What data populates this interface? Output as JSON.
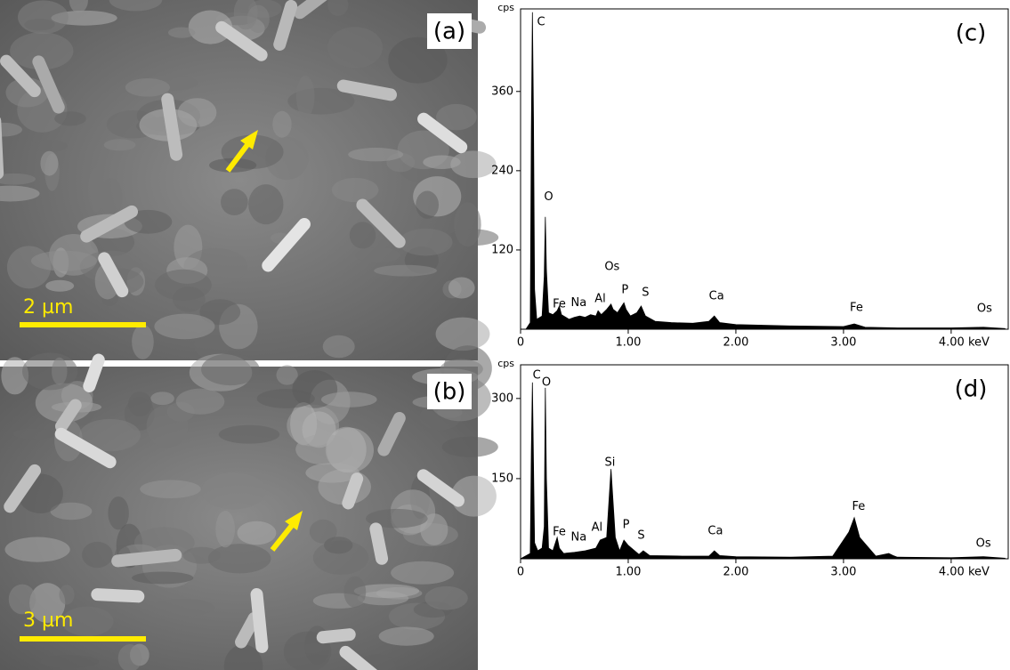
{
  "images": [
    {
      "label": "(a)",
      "scale_bar": "2 µm"
    },
    {
      "label": "(b)",
      "scale_bar": "3 µm"
    }
  ],
  "chart_data": [
    {
      "type": "area",
      "panel": "(c)",
      "y_label": "cps",
      "color": "#000000",
      "x": [
        0,
        0.05,
        0.09,
        0.1,
        0.11,
        0.12,
        0.13,
        0.15,
        0.2,
        0.22,
        0.23,
        0.24,
        0.26,
        0.3,
        0.34,
        0.36,
        0.38,
        0.45,
        0.5,
        0.55,
        0.6,
        0.65,
        0.7,
        0.72,
        0.75,
        0.8,
        0.84,
        0.86,
        0.9,
        0.94,
        0.96,
        0.98,
        1.02,
        1.08,
        1.12,
        1.16,
        1.25,
        1.4,
        1.6,
        1.75,
        1.8,
        1.85,
        2.0,
        2.5,
        3.0,
        3.1,
        3.2,
        3.5,
        4.0,
        4.3,
        4.5
      ],
      "values": [
        0,
        0,
        10,
        300,
        480,
        320,
        60,
        15,
        20,
        80,
        170,
        90,
        25,
        22,
        28,
        35,
        22,
        15,
        18,
        20,
        18,
        22,
        20,
        28,
        22,
        30,
        38,
        30,
        25,
        35,
        40,
        30,
        20,
        25,
        35,
        20,
        12,
        10,
        9,
        12,
        20,
        10,
        7,
        5,
        4,
        8,
        3,
        2,
        2,
        3,
        1
      ],
      "xlim": [
        0,
        4.53
      ],
      "ylim": [
        0,
        485
      ],
      "xticks": [
        0,
        {
          "value": 1,
          "label": "1.00"
        },
        {
          "value": 2,
          "label": "2.00"
        },
        {
          "value": 3,
          "label": "3.00"
        },
        {
          "value": 4,
          "label": "4.00 keV"
        }
      ],
      "yticks": [
        120,
        240,
        360
      ],
      "annotations": [
        {
          "text": "C",
          "x": 0.19,
          "y": 465
        },
        {
          "text": "O",
          "x": 0.26,
          "y": 200
        },
        {
          "text": "Fe",
          "x": 0.36,
          "y": 38
        },
        {
          "text": "Na",
          "x": 0.54,
          "y": 40
        },
        {
          "text": "Al",
          "x": 0.74,
          "y": 46
        },
        {
          "text": "Os",
          "x": 0.85,
          "y": 94
        },
        {
          "text": "P",
          "x": 0.97,
          "y": 59
        },
        {
          "text": "S",
          "x": 1.16,
          "y": 55
        },
        {
          "text": "Ca",
          "x": 1.82,
          "y": 50
        },
        {
          "text": "Fe",
          "x": 3.12,
          "y": 32
        },
        {
          "text": "Os",
          "x": 4.31,
          "y": 31
        }
      ]
    },
    {
      "type": "area",
      "panel": "(d)",
      "y_label": "cps",
      "color": "#000000",
      "x": [
        0,
        0.09,
        0.1,
        0.11,
        0.12,
        0.13,
        0.16,
        0.2,
        0.22,
        0.23,
        0.24,
        0.26,
        0.3,
        0.34,
        0.36,
        0.4,
        0.5,
        0.6,
        0.7,
        0.74,
        0.8,
        0.84,
        0.88,
        0.92,
        0.96,
        1.0,
        1.1,
        1.14,
        1.2,
        1.5,
        1.75,
        1.8,
        1.85,
        2.0,
        2.5,
        2.9,
        3.05,
        3.1,
        3.15,
        3.3,
        3.42,
        3.46,
        3.5,
        4.0,
        4.3,
        4.5
      ],
      "values": [
        0,
        10,
        200,
        330,
        180,
        30,
        15,
        20,
        60,
        320,
        150,
        20,
        15,
        40,
        20,
        10,
        12,
        15,
        20,
        35,
        40,
        168,
        40,
        15,
        35,
        25,
        8,
        15,
        6,
        5,
        5,
        15,
        6,
        4,
        3,
        5,
        50,
        77,
        40,
        5,
        10,
        6,
        3,
        2,
        4,
        1
      ],
      "xlim": [
        0,
        4.53
      ],
      "ylim": [
        0,
        363
      ],
      "xticks": [
        0,
        {
          "value": 1,
          "label": "1.00"
        },
        {
          "value": 2,
          "label": "2.00"
        },
        {
          "value": 3,
          "label": "3.00"
        },
        {
          "value": 4,
          "label": "4.00 keV"
        }
      ],
      "yticks": [
        150,
        300
      ],
      "annotations": [
        {
          "text": "C",
          "x": 0.15,
          "y": 343
        },
        {
          "text": "O",
          "x": 0.24,
          "y": 330
        },
        {
          "text": "Si",
          "x": 0.83,
          "y": 180
        },
        {
          "text": "Fe",
          "x": 0.36,
          "y": 50
        },
        {
          "text": "Na",
          "x": 0.54,
          "y": 40
        },
        {
          "text": "Al",
          "x": 0.71,
          "y": 58
        },
        {
          "text": "P",
          "x": 0.98,
          "y": 63
        },
        {
          "text": "S",
          "x": 1.12,
          "y": 43
        },
        {
          "text": "Ca",
          "x": 1.81,
          "y": 52
        },
        {
          "text": "Fe",
          "x": 3.14,
          "y": 97
        },
        {
          "text": "Os",
          "x": 4.3,
          "y": 28
        }
      ]
    }
  ]
}
